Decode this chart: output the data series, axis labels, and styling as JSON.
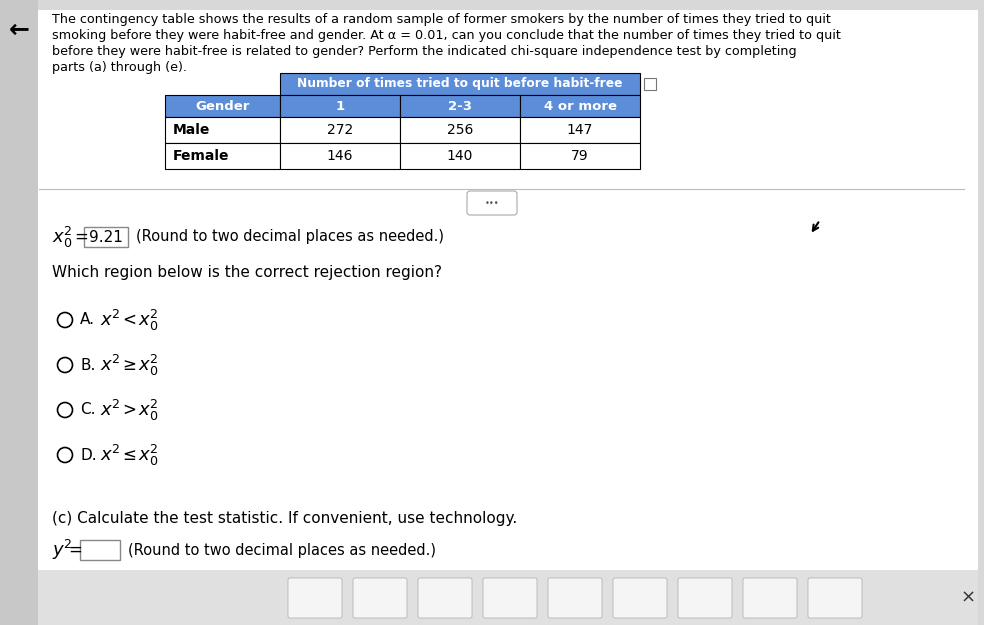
{
  "title_lines": [
    "The contingency table shows the results of a random sample of former smokers by the number of times they tried to quit",
    "smoking before they were habit-free and gender. At α = 0.01, can you conclude that the number of times they tried to quit",
    "before they were habit-free is related to gender? Perform the indicated chi-square independence test by completing",
    "parts (a) through (e)."
  ],
  "table_header_top": "Number of times tried to quit before habit-free",
  "table_col_headers": [
    "Gender",
    "1",
    "2-3",
    "4 or more"
  ],
  "table_rows": [
    [
      "Male",
      "272",
      "256",
      "147"
    ],
    [
      "Female",
      "146",
      "140",
      "79"
    ]
  ],
  "header_bg_color": "#5B8DD9",
  "header_text_color": "#FFFFFF",
  "row_bg_color": "#FFFFFF",
  "row_text_color": "#000000",
  "critical_value": "9.21",
  "critical_value_note": "(Round to two decimal places as needed.)",
  "rejection_region_question": "Which region below is the correct rejection region?",
  "options": [
    {
      "label": "A.",
      "op": "<"
    },
    {
      "label": "B.",
      "op": "≥"
    },
    {
      "label": "C.",
      "op": ">"
    },
    {
      "label": "D.",
      "op": "≤"
    }
  ],
  "part_c_label": "(c) Calculate the test statistic. If convenient, use technology.",
  "part_c_note": "(Round to two decimal places as needed.)",
  "close_button_text": "×",
  "back_arrow": "←",
  "background_color": "#D8D8D8",
  "page_bg": "#FFFFFF",
  "left_panel_color": "#C8C8C8",
  "toolbar_color": "#E0E0E0"
}
